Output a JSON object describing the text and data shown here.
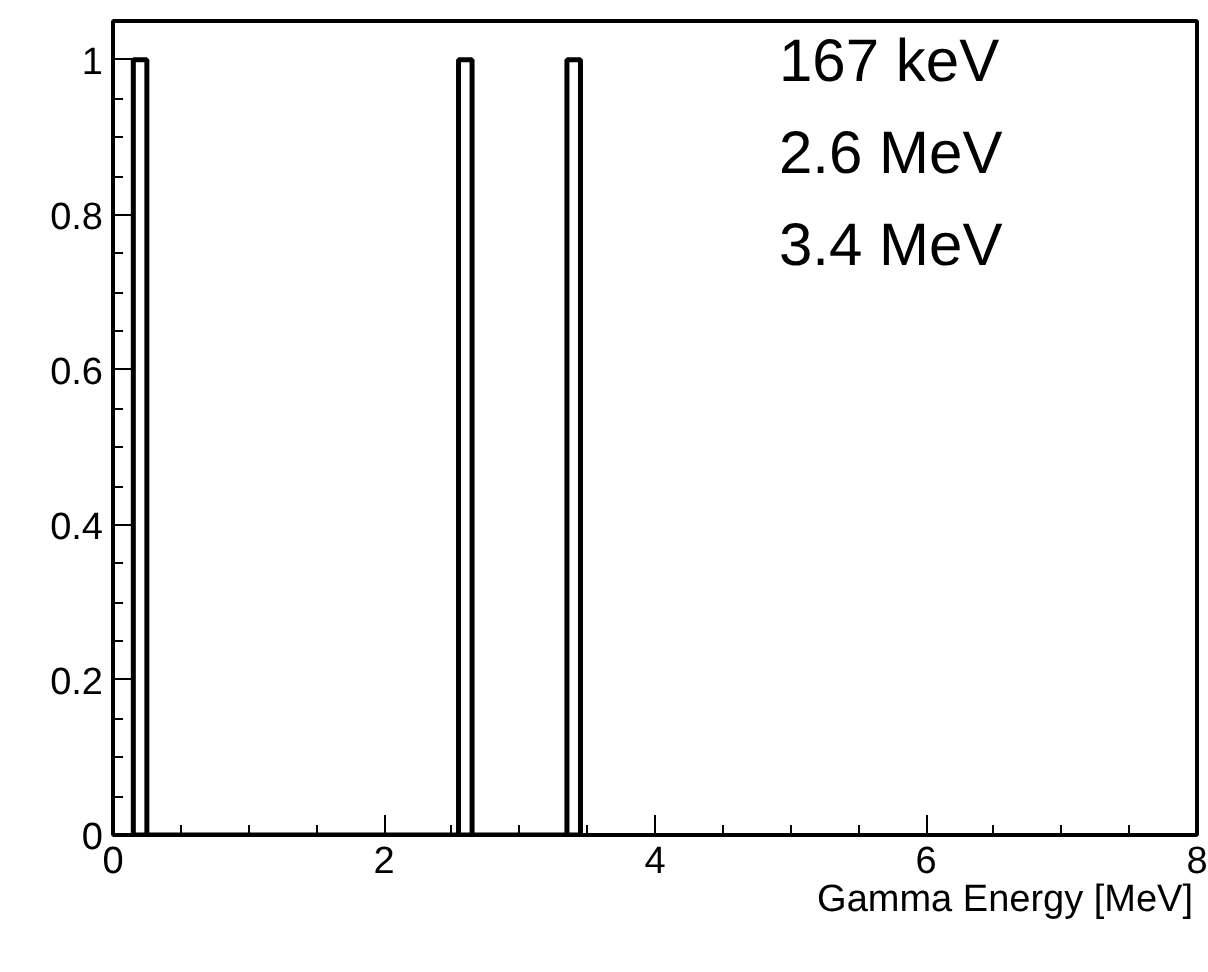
{
  "chart_data": {
    "type": "histogram",
    "xlabel": "Gamma Energy [MeV]",
    "bins": [
      0.15,
      0.25,
      2.55,
      2.65,
      3.35,
      3.45
    ],
    "values": [
      1,
      0,
      1,
      0,
      1
    ],
    "color": "#000000",
    "xlim": [
      0,
      8
    ],
    "ylim": [
      0,
      1.05
    ],
    "xticks": [
      0,
      2,
      4,
      6,
      8
    ],
    "yticks": [
      0,
      0.2,
      0.4,
      0.6,
      0.8,
      1
    ],
    "grid": false,
    "annotations": [
      "167 keV",
      "2.6 MeV",
      "3.4 MeV"
    ]
  }
}
